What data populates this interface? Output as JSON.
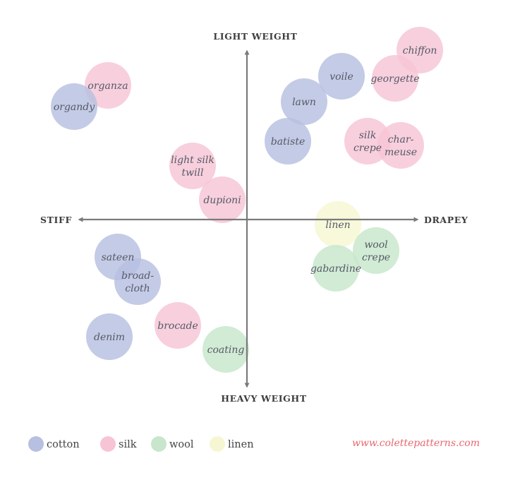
{
  "axes": {
    "top": "LIGHT WEIGHT",
    "bottom": "HEAVY WEIGHT",
    "left": "STIFF",
    "right": "DRAPEY"
  },
  "colors": {
    "cotton": "#b7c0e0",
    "silk": "#f7c4d6",
    "wool": "#c7e6cb",
    "linen": "#f6f6d2",
    "axis": "#7a7a7a"
  },
  "fabrics": [
    {
      "id": "organza",
      "lines": [
        "organza"
      ],
      "type": "silk"
    },
    {
      "id": "organdy",
      "lines": [
        "organdy"
      ],
      "type": "cotton"
    },
    {
      "id": "chiffon",
      "lines": [
        "chiffon"
      ],
      "type": "silk"
    },
    {
      "id": "voile",
      "lines": [
        "voile"
      ],
      "type": "cotton"
    },
    {
      "id": "georgette",
      "lines": [
        "georgette"
      ],
      "type": "silk"
    },
    {
      "id": "lawn",
      "lines": [
        "lawn"
      ],
      "type": "cotton"
    },
    {
      "id": "batiste",
      "lines": [
        "batiste"
      ],
      "type": "cotton"
    },
    {
      "id": "silk-crepe",
      "lines": [
        "silk",
        "crepe"
      ],
      "type": "silk"
    },
    {
      "id": "charmeuse",
      "lines": [
        "char-",
        "meuse"
      ],
      "type": "silk"
    },
    {
      "id": "light-silk-twill",
      "lines": [
        "light silk",
        "twill"
      ],
      "type": "silk"
    },
    {
      "id": "dupioni",
      "lines": [
        "dupioni"
      ],
      "type": "silk"
    },
    {
      "id": "linen",
      "lines": [
        "linen"
      ],
      "type": "linen"
    },
    {
      "id": "wool-crepe",
      "lines": [
        "wool",
        "crepe"
      ],
      "type": "wool"
    },
    {
      "id": "gabardine",
      "lines": [
        "gabardine"
      ],
      "type": "wool"
    },
    {
      "id": "sateen",
      "lines": [
        "sateen"
      ],
      "type": "cotton"
    },
    {
      "id": "broadcloth",
      "lines": [
        "broad-",
        "cloth"
      ],
      "type": "cotton"
    },
    {
      "id": "denim",
      "lines": [
        "denim"
      ],
      "type": "cotton"
    },
    {
      "id": "brocade",
      "lines": [
        "brocade"
      ],
      "type": "silk"
    },
    {
      "id": "coating",
      "lines": [
        "coating"
      ],
      "type": "wool"
    }
  ],
  "legend": [
    {
      "type": "cotton",
      "label": "cotton"
    },
    {
      "type": "silk",
      "label": "silk"
    },
    {
      "type": "wool",
      "label": "wool"
    },
    {
      "type": "linen",
      "label": "linen"
    }
  ],
  "credit": "www.colettepatterns.com"
}
